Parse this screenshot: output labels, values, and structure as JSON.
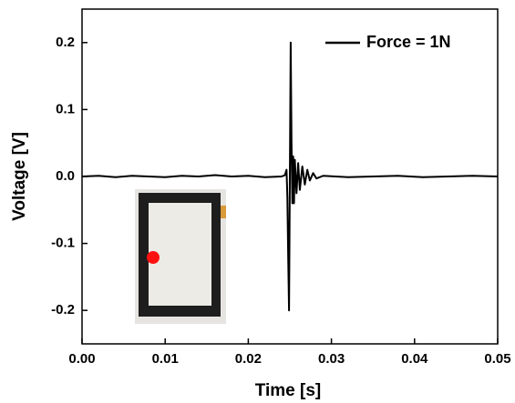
{
  "chart_data": {
    "type": "line",
    "xlabel": "Time [s]",
    "ylabel": "Voltage [V]",
    "x": [
      0,
      0.002,
      0.004,
      0.006,
      0.008,
      0.01,
      0.012,
      0.014,
      0.016,
      0.018,
      0.02,
      0.022,
      0.024,
      0.0244,
      0.0246,
      0.0247,
      0.0248,
      0.0249,
      0.025,
      0.0251,
      0.0252,
      0.0253,
      0.0254,
      0.0255,
      0.0256,
      0.0258,
      0.026,
      0.0262,
      0.0265,
      0.0268,
      0.0271,
      0.0274,
      0.0278,
      0.0282,
      0.029,
      0.032,
      0.035,
      0.038,
      0.041,
      0.044,
      0.047,
      0.05
    ],
    "series": [
      {
        "name": "Force = 1N",
        "color": "#000000",
        "values": [
          0,
          0.001,
          -0.001,
          0.001,
          0,
          -0.001,
          0.001,
          0,
          0.002,
          0,
          0.001,
          -0.001,
          0,
          0.002,
          0.01,
          -0.03,
          -0.12,
          -0.2,
          0,
          0.2,
          0.05,
          -0.04,
          0.03,
          -0.04,
          0.025,
          -0.025,
          0.02,
          -0.02,
          0.015,
          -0.012,
          0.01,
          -0.006,
          0.005,
          -0.003,
          0.001,
          -0.001,
          0,
          0.001,
          -0.001,
          0,
          0.001,
          0
        ]
      }
    ],
    "xlim": [
      0,
      0.05
    ],
    "xticks": [
      {
        "value": 0,
        "label": "0.00"
      },
      0.01,
      0.02,
      0.03,
      0.04,
      0.05
    ],
    "ylim": [
      -0.25,
      0.25
    ],
    "yticks": [
      -0.2,
      -0.1,
      {
        "value": 0,
        "label": "0.0"
      },
      0.1,
      0.2
    ],
    "legend": "upper right"
  }
}
